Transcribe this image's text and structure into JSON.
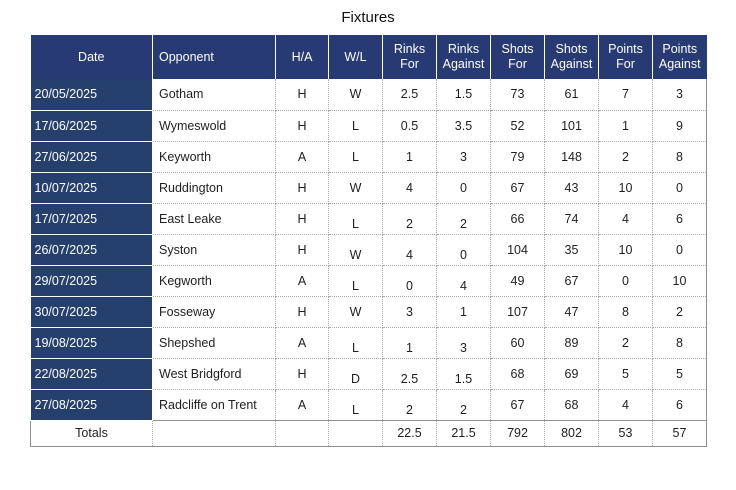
{
  "title": "Fixtures",
  "columns": {
    "date": "Date",
    "opponent": "Opponent",
    "ha": "H/A",
    "wl": "W/L",
    "rinks_for": [
      "Rinks",
      "For"
    ],
    "rinks_against": [
      "Rinks",
      "Against"
    ],
    "shots_for": [
      "Shots",
      "For"
    ],
    "shots_against": [
      "Shots",
      "Against"
    ],
    "points_for": [
      "Points",
      "For"
    ],
    "points_against": [
      "Points",
      "Against"
    ]
  },
  "rows": [
    {
      "date": "20/05/2025",
      "opponent": "Gotham",
      "ha": "H",
      "wl": "W",
      "rinks_for": "2.5",
      "rinks_against": "1.5",
      "shots_for": "73",
      "shots_against": "61",
      "points_for": "7",
      "points_against": "3"
    },
    {
      "date": "17/06/2025",
      "opponent": "Wymeswold",
      "ha": "H",
      "wl": "L",
      "rinks_for": "0.5",
      "rinks_against": "3.5",
      "shots_for": "52",
      "shots_against": "101",
      "points_for": "1",
      "points_against": "9"
    },
    {
      "date": "27/06/2025",
      "opponent": "Keyworth",
      "ha": "A",
      "wl": "L",
      "rinks_for": "1",
      "rinks_against": "3",
      "shots_for": "79",
      "shots_against": "148",
      "points_for": "2",
      "points_against": "8"
    },
    {
      "date": "10/07/2025",
      "opponent": "Ruddington",
      "ha": "H",
      "wl": "W",
      "rinks_for": "4",
      "rinks_against": "0",
      "shots_for": "67",
      "shots_against": "43",
      "points_for": "10",
      "points_against": "0"
    },
    {
      "date": "17/07/2025",
      "opponent": "East Leake",
      "ha": "H",
      "wl": "L",
      "rinks_for": "2",
      "rinks_against": "2",
      "shots_for": "66",
      "shots_against": "74",
      "points_for": "4",
      "points_against": "6"
    },
    {
      "date": "26/07/2025",
      "opponent": "Syston",
      "ha": "H",
      "wl": "W",
      "rinks_for": "4",
      "rinks_against": "0",
      "shots_for": "104",
      "shots_against": "35",
      "points_for": "10",
      "points_against": "0"
    },
    {
      "date": "29/07/2025",
      "opponent": "Kegworth",
      "ha": "A",
      "wl": "L",
      "rinks_for": "0",
      "rinks_against": "4",
      "shots_for": "49",
      "shots_against": "67",
      "points_for": "0",
      "points_against": "10"
    },
    {
      "date": "30/07/2025",
      "opponent": "Fosseway",
      "ha": "H",
      "wl": "W",
      "rinks_for": "3",
      "rinks_against": "1",
      "shots_for": "107",
      "shots_against": "47",
      "points_for": "8",
      "points_against": "2"
    },
    {
      "date": "19/08/2025",
      "opponent": "Shepshed",
      "ha": "A",
      "wl": "L",
      "rinks_for": "1",
      "rinks_against": "3",
      "shots_for": "60",
      "shots_against": "89",
      "points_for": "2",
      "points_against": "8"
    },
    {
      "date": "22/08/2025",
      "opponent": "West Bridgford",
      "ha": "H",
      "wl": "D",
      "rinks_for": "2.5",
      "rinks_against": "1.5",
      "shots_for": "68",
      "shots_against": "69",
      "points_for": "5",
      "points_against": "5"
    },
    {
      "date": "27/08/2025",
      "opponent": "Radcliffe on Trent",
      "ha": "A",
      "wl": "L",
      "rinks_for": "2",
      "rinks_against": "2",
      "shots_for": "67",
      "shots_against": "68",
      "points_for": "4",
      "points_against": "6"
    }
  ],
  "totals": {
    "label": "Totals",
    "rinks_for": "22.5",
    "rinks_against": "21.5",
    "shots_for": "792",
    "shots_against": "802",
    "points_for": "53",
    "points_against": "57"
  },
  "colors": {
    "header_bg": "#283a73",
    "date_cell_bg": "#25406c",
    "header_text": "#ffffff"
  }
}
